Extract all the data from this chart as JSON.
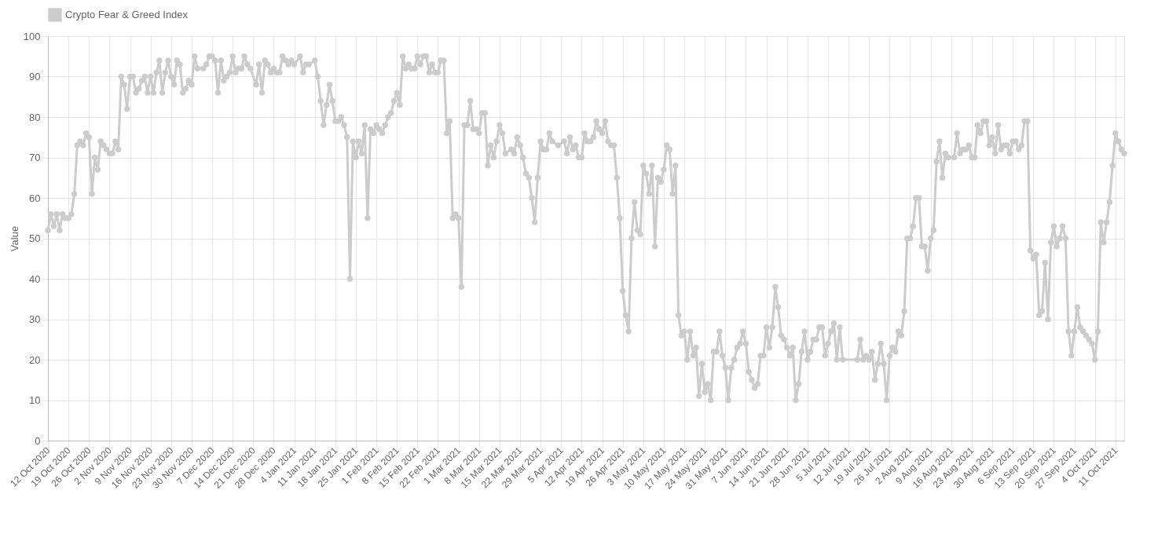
{
  "chart_data": {
    "type": "line",
    "ylabel": "Value",
    "legend": "top",
    "grid": true,
    "marker": "circle",
    "line_style": "solid",
    "xlim": [
      "2020-10-12",
      "2021-10-14"
    ],
    "ylim": [
      0,
      100
    ],
    "yticks": [
      0,
      10,
      20,
      30,
      40,
      50,
      60,
      70,
      80,
      90,
      100
    ],
    "xticks": [
      {
        "value": "2020-10-12",
        "label": "12 Oct 2020"
      },
      {
        "value": "2020-10-19",
        "label": "19 Oct 2020"
      },
      {
        "value": "2020-10-26",
        "label": "26 Oct 2020"
      },
      {
        "value": "2020-11-02",
        "label": "2 Nov 2020"
      },
      {
        "value": "2020-11-09",
        "label": "9 Nov 2020"
      },
      {
        "value": "2020-11-16",
        "label": "16 Nov 2020"
      },
      {
        "value": "2020-11-23",
        "label": "23 Nov 2020"
      },
      {
        "value": "2020-11-30",
        "label": "30 Nov 2020"
      },
      {
        "value": "2020-12-07",
        "label": "7 Dec 2020"
      },
      {
        "value": "2020-12-14",
        "label": "14 Dec 2020"
      },
      {
        "value": "2020-12-21",
        "label": "21 Dec 2020"
      },
      {
        "value": "2020-12-28",
        "label": "28 Dec 2020"
      },
      {
        "value": "2021-01-04",
        "label": "4 Jan 2021"
      },
      {
        "value": "2021-01-11",
        "label": "11 Jan 2021"
      },
      {
        "value": "2021-01-18",
        "label": "18 Jan 2021"
      },
      {
        "value": "2021-01-25",
        "label": "25 Jan 2021"
      },
      {
        "value": "2021-02-01",
        "label": "1 Feb 2021"
      },
      {
        "value": "2021-02-08",
        "label": "8 Feb 2021"
      },
      {
        "value": "2021-02-15",
        "label": "15 Feb 2021"
      },
      {
        "value": "2021-02-22",
        "label": "22 Feb 2021"
      },
      {
        "value": "2021-03-01",
        "label": "1 Mar 2021"
      },
      {
        "value": "2021-03-08",
        "label": "8 Mar 2021"
      },
      {
        "value": "2021-03-15",
        "label": "15 Mar 2021"
      },
      {
        "value": "2021-03-22",
        "label": "22 Mar 2021"
      },
      {
        "value": "2021-03-29",
        "label": "29 Mar 2021"
      },
      {
        "value": "2021-04-05",
        "label": "5 Apr 2021"
      },
      {
        "value": "2021-04-12",
        "label": "12 Apr 2021"
      },
      {
        "value": "2021-04-19",
        "label": "19 Apr 2021"
      },
      {
        "value": "2021-04-26",
        "label": "26 Apr 2021"
      },
      {
        "value": "2021-05-03",
        "label": "3 May 2021"
      },
      {
        "value": "2021-05-10",
        "label": "10 May 2021"
      },
      {
        "value": "2021-05-17",
        "label": "17 May 2021"
      },
      {
        "value": "2021-05-24",
        "label": "24 May 2021"
      },
      {
        "value": "2021-05-31",
        "label": "31 May 2021"
      },
      {
        "value": "2021-06-07",
        "label": "7 Jun 2021"
      },
      {
        "value": "2021-06-14",
        "label": "14 Jun 2021"
      },
      {
        "value": "2021-06-21",
        "label": "21 Jun 2021"
      },
      {
        "value": "2021-06-28",
        "label": "28 Jun 2021"
      },
      {
        "value": "2021-07-05",
        "label": "5 Jul 2021"
      },
      {
        "value": "2021-07-12",
        "label": "12 Jul 2021"
      },
      {
        "value": "2021-07-19",
        "label": "19 Jul 2021"
      },
      {
        "value": "2021-07-26",
        "label": "26 Jul 2021"
      },
      {
        "value": "2021-08-02",
        "label": "2 Aug 2021"
      },
      {
        "value": "2021-08-09",
        "label": "9 Aug 2021"
      },
      {
        "value": "2021-08-16",
        "label": "16 Aug 2021"
      },
      {
        "value": "2021-08-23",
        "label": "23 Aug 2021"
      },
      {
        "value": "2021-08-30",
        "label": "30 Aug 2021"
      },
      {
        "value": "2021-09-06",
        "label": "6 Sep 2021"
      },
      {
        "value": "2021-09-13",
        "label": "13 Sep 2021"
      },
      {
        "value": "2021-09-20",
        "label": "20 Sep 2021"
      },
      {
        "value": "2021-09-27",
        "label": "27 Sep 2021"
      },
      {
        "value": "2021-10-04",
        "label": "4 Oct 2021"
      },
      {
        "value": "2021-10-11",
        "label": "11 Oct 2021"
      }
    ],
    "x": [
      "2020-10-12",
      "2020-10-13",
      "2020-10-14",
      "2020-10-15",
      "2020-10-16",
      "2020-10-17",
      "2020-10-18",
      "2020-10-19",
      "2020-10-20",
      "2020-10-21",
      "2020-10-22",
      "2020-10-23",
      "2020-10-24",
      "2020-10-25",
      "2020-10-26",
      "2020-10-27",
      "2020-10-28",
      "2020-10-29",
      "2020-10-30",
      "2020-10-31",
      "2020-11-01",
      "2020-11-02",
      "2020-11-03",
      "2020-11-04",
      "2020-11-05",
      "2020-11-06",
      "2020-11-07",
      "2020-11-08",
      "2020-11-09",
      "2020-11-10",
      "2020-11-11",
      "2020-11-12",
      "2020-11-13",
      "2020-11-14",
      "2020-11-15",
      "2020-11-16",
      "2020-11-17",
      "2020-11-18",
      "2020-11-19",
      "2020-11-20",
      "2020-11-21",
      "2020-11-22",
      "2020-11-23",
      "2020-11-24",
      "2020-11-25",
      "2020-11-26",
      "2020-11-27",
      "2020-11-28",
      "2020-11-29",
      "2020-11-30",
      "2020-12-01",
      "2020-12-02",
      "2020-12-04",
      "2020-12-05",
      "2020-12-06",
      "2020-12-07",
      "2020-12-08",
      "2020-12-09",
      "2020-12-10",
      "2020-12-11",
      "2020-12-12",
      "2020-12-13",
      "2020-12-14",
      "2020-12-15",
      "2020-12-16",
      "2020-12-17",
      "2020-12-18",
      "2020-12-19",
      "2020-12-20",
      "2020-12-22",
      "2020-12-23",
      "2020-12-24",
      "2020-12-25",
      "2020-12-26",
      "2020-12-27",
      "2020-12-28",
      "2020-12-29",
      "2020-12-30",
      "2020-12-31",
      "2021-01-01",
      "2021-01-02",
      "2021-01-03",
      "2021-01-04",
      "2021-01-06",
      "2021-01-07",
      "2021-01-08",
      "2021-01-09",
      "2021-01-11",
      "2021-01-12",
      "2021-01-13",
      "2021-01-14",
      "2021-01-15",
      "2021-01-16",
      "2021-01-17",
      "2021-01-18",
      "2021-01-19",
      "2021-01-20",
      "2021-01-21",
      "2021-01-22",
      "2021-01-23",
      "2021-01-24",
      "2021-01-25",
      "2021-01-26",
      "2021-01-27",
      "2021-01-28",
      "2021-01-29",
      "2021-01-30",
      "2021-01-31",
      "2021-02-01",
      "2021-02-02",
      "2021-02-03",
      "2021-02-04",
      "2021-02-05",
      "2021-02-06",
      "2021-02-07",
      "2021-02-08",
      "2021-02-09",
      "2021-02-10",
      "2021-02-11",
      "2021-02-12",
      "2021-02-13",
      "2021-02-14",
      "2021-02-15",
      "2021-02-16",
      "2021-02-17",
      "2021-02-18",
      "2021-02-19",
      "2021-02-20",
      "2021-02-21",
      "2021-02-22",
      "2021-02-23",
      "2021-02-24",
      "2021-02-25",
      "2021-02-26",
      "2021-02-27",
      "2021-02-28",
      "2021-03-01",
      "2021-03-02",
      "2021-03-03",
      "2021-03-04",
      "2021-03-05",
      "2021-03-06",
      "2021-03-07",
      "2021-03-08",
      "2021-03-09",
      "2021-03-10",
      "2021-03-11",
      "2021-03-12",
      "2021-03-13",
      "2021-03-14",
      "2021-03-15",
      "2021-03-16",
      "2021-03-17",
      "2021-03-19",
      "2021-03-20",
      "2021-03-21",
      "2021-03-22",
      "2021-03-23",
      "2021-03-24",
      "2021-03-25",
      "2021-03-26",
      "2021-03-27",
      "2021-03-28",
      "2021-03-29",
      "2021-03-30",
      "2021-03-31",
      "2021-04-01",
      "2021-04-02",
      "2021-04-04",
      "2021-04-06",
      "2021-04-07",
      "2021-04-08",
      "2021-04-09",
      "2021-04-10",
      "2021-04-11",
      "2021-04-12",
      "2021-04-13",
      "2021-04-14",
      "2021-04-15",
      "2021-04-16",
      "2021-04-17",
      "2021-04-18",
      "2021-04-19",
      "2021-04-20",
      "2021-04-21",
      "2021-04-22",
      "2021-04-23",
      "2021-04-24",
      "2021-04-25",
      "2021-04-26",
      "2021-04-27",
      "2021-04-28",
      "2021-04-29",
      "2021-04-30",
      "2021-05-01",
      "2021-05-02",
      "2021-05-03",
      "2021-05-04",
      "2021-05-05",
      "2021-05-06",
      "2021-05-07",
      "2021-05-08",
      "2021-05-09",
      "2021-05-10",
      "2021-05-11",
      "2021-05-12",
      "2021-05-13",
      "2021-05-14",
      "2021-05-15",
      "2021-05-16",
      "2021-05-17",
      "2021-05-18",
      "2021-05-19",
      "2021-05-20",
      "2021-05-21",
      "2021-05-22",
      "2021-05-23",
      "2021-05-24",
      "2021-05-25",
      "2021-05-26",
      "2021-05-27",
      "2021-05-28",
      "2021-05-29",
      "2021-05-30",
      "2021-05-31",
      "2021-06-01",
      "2021-06-02",
      "2021-06-03",
      "2021-06-04",
      "2021-06-05",
      "2021-06-06",
      "2021-06-07",
      "2021-06-08",
      "2021-06-09",
      "2021-06-10",
      "2021-06-11",
      "2021-06-12",
      "2021-06-13",
      "2021-06-14",
      "2021-06-15",
      "2021-06-16",
      "2021-06-17",
      "2021-06-18",
      "2021-06-19",
      "2021-06-20",
      "2021-06-21",
      "2021-06-22",
      "2021-06-23",
      "2021-06-24",
      "2021-06-25",
      "2021-06-26",
      "2021-06-27",
      "2021-06-28",
      "2021-06-29",
      "2021-06-30",
      "2021-07-01",
      "2021-07-02",
      "2021-07-03",
      "2021-07-04",
      "2021-07-05",
      "2021-07-06",
      "2021-07-07",
      "2021-07-08",
      "2021-07-09",
      "2021-07-10",
      "2021-07-15",
      "2021-07-16",
      "2021-07-17",
      "2021-07-18",
      "2021-07-19",
      "2021-07-20",
      "2021-07-21",
      "2021-07-22",
      "2021-07-23",
      "2021-07-24",
      "2021-07-25",
      "2021-07-26",
      "2021-07-27",
      "2021-07-28",
      "2021-07-29",
      "2021-07-30",
      "2021-07-31",
      "2021-08-01",
      "2021-08-02",
      "2021-08-03",
      "2021-08-04",
      "2021-08-05",
      "2021-08-06",
      "2021-08-07",
      "2021-08-08",
      "2021-08-09",
      "2021-08-10",
      "2021-08-11",
      "2021-08-12",
      "2021-08-13",
      "2021-08-14",
      "2021-08-15",
      "2021-08-17",
      "2021-08-18",
      "2021-08-19",
      "2021-08-20",
      "2021-08-21",
      "2021-08-22",
      "2021-08-23",
      "2021-08-24",
      "2021-08-25",
      "2021-08-26",
      "2021-08-27",
      "2021-08-28",
      "2021-08-29",
      "2021-08-30",
      "2021-08-31",
      "2021-09-01",
      "2021-09-02",
      "2021-09-03",
      "2021-09-04",
      "2021-09-05",
      "2021-09-06",
      "2021-09-07",
      "2021-09-08",
      "2021-09-09",
      "2021-09-10",
      "2021-09-11",
      "2021-09-12",
      "2021-09-13",
      "2021-09-14",
      "2021-09-15",
      "2021-09-16",
      "2021-09-17",
      "2021-09-18",
      "2021-09-19",
      "2021-09-20",
      "2021-09-21",
      "2021-09-22",
      "2021-09-23",
      "2021-09-24",
      "2021-09-25",
      "2021-09-26",
      "2021-09-27",
      "2021-09-28",
      "2021-09-29",
      "2021-09-30",
      "2021-10-01",
      "2021-10-02",
      "2021-10-03",
      "2021-10-04",
      "2021-10-05",
      "2021-10-06",
      "2021-10-07",
      "2021-10-08",
      "2021-10-09",
      "2021-10-10",
      "2021-10-11",
      "2021-10-12",
      "2021-10-13",
      "2021-10-14"
    ],
    "series": [
      {
        "name": "Crypto Fear & Greed Index",
        "color": "#cccccc",
        "values": [
          52,
          56,
          53,
          56,
          52,
          56,
          55,
          55,
          56,
          61,
          73,
          74,
          73,
          76,
          75,
          61,
          70,
          67,
          74,
          73,
          72,
          71,
          71,
          74,
          72,
          90,
          88,
          82,
          90,
          90,
          86,
          87,
          89,
          90,
          86,
          90,
          86,
          91,
          94,
          86,
          91,
          94,
          90,
          88,
          94,
          93,
          86,
          87,
          89,
          88,
          95,
          92,
          92,
          93,
          95,
          95,
          94,
          86,
          94,
          89,
          90,
          91,
          95,
          91,
          92,
          92,
          95,
          93,
          92,
          88,
          93,
          86,
          94,
          93,
          91,
          92,
          91,
          91,
          95,
          94,
          93,
          94,
          93,
          95,
          91,
          93,
          93,
          94,
          90,
          84,
          78,
          83,
          88,
          84,
          79,
          79,
          80,
          78,
          75,
          40,
          74,
          70,
          74,
          71,
          78,
          55,
          77,
          76,
          78,
          77,
          76,
          78,
          80,
          81,
          84,
          86,
          83,
          95,
          92,
          93,
          92,
          92,
          95,
          93,
          95,
          95,
          91,
          93,
          91,
          91,
          94,
          94,
          76,
          79,
          55,
          56,
          55,
          38,
          78,
          78,
          84,
          77,
          77,
          76,
          81,
          81,
          68,
          73,
          70,
          74,
          78,
          76,
          71,
          72,
          71,
          75,
          73,
          70,
          66,
          65,
          60,
          54,
          65,
          74,
          72,
          72,
          76,
          74,
          73,
          74,
          71,
          75,
          72,
          73,
          70,
          70,
          76,
          74,
          74,
          75,
          79,
          77,
          76,
          79,
          74,
          73,
          73,
          65,
          55,
          37,
          31,
          27,
          50,
          59,
          52,
          51,
          68,
          66,
          61,
          68,
          48,
          65,
          64,
          67,
          73,
          72,
          61,
          68,
          31,
          26,
          27,
          20,
          27,
          21,
          23,
          11,
          19,
          12,
          14,
          10,
          22,
          22,
          27,
          21,
          18,
          10,
          18,
          20,
          23,
          24,
          27,
          24,
          17,
          15,
          13,
          14,
          21,
          21,
          28,
          23,
          28,
          38,
          33,
          26,
          25,
          23,
          21,
          23,
          10,
          14,
          22,
          27,
          20,
          22,
          25,
          25,
          28,
          28,
          21,
          24,
          27,
          29,
          20,
          28,
          20,
          20,
          25,
          20,
          21,
          20,
          22,
          15,
          19,
          24,
          19,
          10,
          21,
          23,
          22,
          27,
          26,
          32,
          50,
          50,
          53,
          60,
          60,
          48,
          48,
          42,
          50,
          52,
          69,
          74,
          65,
          71,
          70,
          70,
          76,
          71,
          72,
          72,
          73,
          70,
          70,
          78,
          76,
          79,
          79,
          73,
          75,
          71,
          78,
          72,
          73,
          73,
          71,
          74,
          74,
          72,
          73,
          79,
          79,
          47,
          45,
          46,
          31,
          32,
          44,
          30,
          49,
          53,
          48,
          50,
          53,
          50,
          27,
          21,
          27,
          33,
          28,
          27,
          26,
          25,
          24,
          20,
          27,
          54,
          49,
          54,
          59,
          68,
          76,
          74,
          72,
          71
        ]
      }
    ]
  }
}
